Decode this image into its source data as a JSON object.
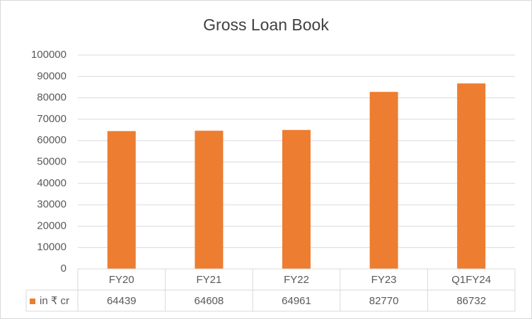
{
  "chart_data": {
    "type": "bar",
    "title": "Gross Loan Book",
    "categories": [
      "FY20",
      "FY21",
      "FY22",
      "FY23",
      "Q1FY24"
    ],
    "series": [
      {
        "name": "in ₹ cr",
        "color": "#ed7d31",
        "values": [
          64439,
          64608,
          64961,
          82770,
          86732
        ]
      }
    ],
    "ylim": [
      0,
      100000
    ],
    "yticks": [
      0,
      10000,
      20000,
      30000,
      40000,
      50000,
      60000,
      70000,
      80000,
      90000,
      100000
    ],
    "grid": true,
    "data_table": true
  }
}
